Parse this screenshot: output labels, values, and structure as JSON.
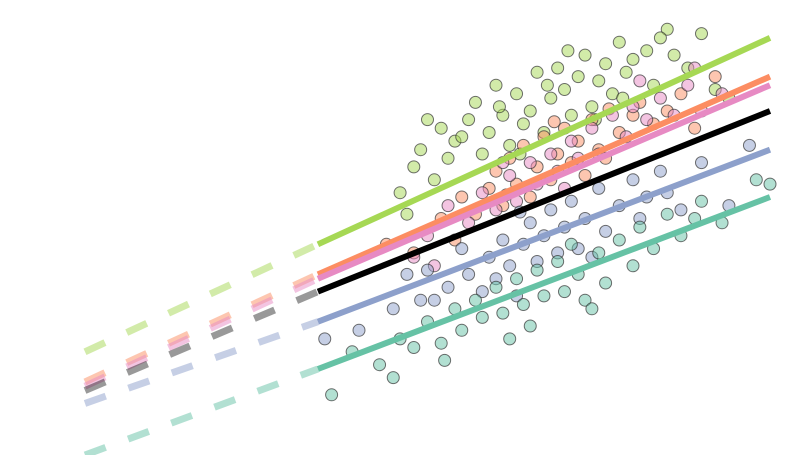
{
  "chart_data": {
    "type": "scatter",
    "title": "",
    "xlabel": "",
    "ylabel": "",
    "xlim": [
      0,
      10
    ],
    "ylim": [
      0,
      10
    ],
    "grid": false,
    "axes_visible": false,
    "legend": "none",
    "series": [
      {
        "color": "#a6d854",
        "points": [
          [
            4.6,
            6.1
          ],
          [
            4.8,
            6.7
          ],
          [
            4.9,
            7.1
          ],
          [
            5.1,
            6.4
          ],
          [
            5.2,
            7.6
          ],
          [
            5.3,
            6.9
          ],
          [
            5.4,
            7.3
          ],
          [
            5.6,
            7.8
          ],
          [
            5.7,
            8.2
          ],
          [
            5.8,
            7.0
          ],
          [
            5.9,
            7.5
          ],
          [
            6.0,
            8.6
          ],
          [
            6.1,
            7.9
          ],
          [
            6.2,
            7.2
          ],
          [
            6.3,
            8.4
          ],
          [
            6.4,
            7.7
          ],
          [
            6.5,
            8.0
          ],
          [
            6.6,
            8.9
          ],
          [
            6.7,
            7.5
          ],
          [
            6.8,
            8.3
          ],
          [
            6.9,
            9.0
          ],
          [
            7.0,
            8.5
          ],
          [
            7.1,
            7.9
          ],
          [
            7.2,
            8.8
          ],
          [
            7.3,
            9.3
          ],
          [
            7.4,
            8.1
          ],
          [
            7.5,
            8.7
          ],
          [
            7.6,
            9.1
          ],
          [
            7.7,
            8.4
          ],
          [
            7.8,
            9.6
          ],
          [
            7.9,
            8.9
          ],
          [
            8.0,
            9.2
          ],
          [
            8.2,
            9.4
          ],
          [
            8.3,
            8.6
          ],
          [
            8.5,
            9.9
          ],
          [
            8.6,
            9.3
          ],
          [
            8.8,
            9.0
          ],
          [
            9.0,
            9.8
          ],
          [
            9.2,
            8.5
          ],
          [
            9.4,
            8.3
          ],
          [
            5.5,
            7.4
          ],
          [
            6.05,
            8.1
          ],
          [
            6.35,
            7.0
          ],
          [
            7.05,
            9.4
          ],
          [
            7.45,
            7.8
          ],
          [
            4.7,
            5.6
          ],
          [
            5.0,
            7.8
          ],
          [
            6.75,
            8.6
          ],
          [
            7.85,
            8.3
          ],
          [
            8.4,
            9.7
          ]
        ],
        "line": {
          "x": [
            3.4,
            10.0
          ],
          "y": [
            4.9,
            9.7
          ]
        },
        "extrap": {
          "x": [
            0.0,
            3.4
          ],
          "y": [
            2.4,
            4.9
          ]
        }
      },
      {
        "color": "#fc8d62",
        "points": [
          [
            4.4,
            4.9
          ],
          [
            5.2,
            5.5
          ],
          [
            5.5,
            6.0
          ],
          [
            5.7,
            5.6
          ],
          [
            5.9,
            6.2
          ],
          [
            6.0,
            6.6
          ],
          [
            6.1,
            5.8
          ],
          [
            6.2,
            6.9
          ],
          [
            6.3,
            6.3
          ],
          [
            6.4,
            7.2
          ],
          [
            6.5,
            6.0
          ],
          [
            6.6,
            6.7
          ],
          [
            6.7,
            7.4
          ],
          [
            6.8,
            6.4
          ],
          [
            6.9,
            7.0
          ],
          [
            7.0,
            7.6
          ],
          [
            7.1,
            6.8
          ],
          [
            7.2,
            7.3
          ],
          [
            7.3,
            6.5
          ],
          [
            7.4,
            7.8
          ],
          [
            7.5,
            7.1
          ],
          [
            7.6,
            6.9
          ],
          [
            7.8,
            7.5
          ],
          [
            8.0,
            7.9
          ],
          [
            8.1,
            8.2
          ],
          [
            8.3,
            7.7
          ],
          [
            8.5,
            8.0
          ],
          [
            8.7,
            8.4
          ],
          [
            8.9,
            7.6
          ],
          [
            9.2,
            8.8
          ],
          [
            4.8,
            4.7
          ],
          [
            5.4,
            5.0
          ],
          [
            6.15,
            6.05
          ],
          [
            6.85,
            7.75
          ],
          [
            7.65,
            8.05
          ]
        ],
        "line": {
          "x": [
            3.4,
            10.0
          ],
          "y": [
            4.2,
            8.8
          ]
        },
        "extrap": {
          "x": [
            0.0,
            3.4
          ],
          "y": [
            1.7,
            4.2
          ]
        }
      },
      {
        "color": "#e78ac3",
        "points": [
          [
            4.8,
            4.6
          ],
          [
            5.0,
            5.1
          ],
          [
            5.3,
            5.8
          ],
          [
            5.6,
            5.4
          ],
          [
            5.8,
            6.1
          ],
          [
            6.0,
            5.7
          ],
          [
            6.2,
            6.5
          ],
          [
            6.3,
            5.9
          ],
          [
            6.5,
            6.8
          ],
          [
            6.6,
            6.3
          ],
          [
            6.8,
            7.0
          ],
          [
            6.9,
            6.6
          ],
          [
            7.1,
            7.3
          ],
          [
            7.2,
            6.9
          ],
          [
            7.4,
            7.6
          ],
          [
            7.5,
            7.0
          ],
          [
            7.7,
            7.9
          ],
          [
            7.9,
            7.4
          ],
          [
            8.0,
            8.1
          ],
          [
            8.2,
            7.8
          ],
          [
            8.4,
            8.3
          ],
          [
            8.6,
            7.9
          ],
          [
            8.8,
            8.6
          ],
          [
            9.0,
            8.0
          ],
          [
            9.3,
            8.4
          ],
          [
            5.1,
            4.4
          ],
          [
            6.1,
            6.8
          ],
          [
            7.0,
            6.2
          ],
          [
            8.1,
            8.7
          ],
          [
            8.9,
            9.0
          ]
        ],
        "line": {
          "x": [
            3.4,
            10.0
          ],
          "y": [
            4.1,
            8.6
          ]
        },
        "extrap": {
          "x": [
            0.0,
            3.4
          ],
          "y": [
            1.6,
            4.1
          ]
        }
      },
      {
        "color": "#8da0cb",
        "points": [
          [
            3.5,
            2.7
          ],
          [
            4.0,
            2.9
          ],
          [
            4.5,
            3.4
          ],
          [
            4.9,
            3.6
          ],
          [
            5.0,
            4.3
          ],
          [
            5.3,
            3.9
          ],
          [
            5.5,
            4.8
          ],
          [
            5.6,
            4.2
          ],
          [
            5.8,
            3.8
          ],
          [
            5.9,
            4.6
          ],
          [
            6.0,
            4.1
          ],
          [
            6.1,
            5.0
          ],
          [
            6.2,
            4.4
          ],
          [
            6.3,
            3.7
          ],
          [
            6.4,
            4.9
          ],
          [
            6.5,
            5.4
          ],
          [
            6.6,
            4.5
          ],
          [
            6.7,
            5.1
          ],
          [
            6.8,
            5.7
          ],
          [
            6.9,
            4.7
          ],
          [
            7.0,
            5.3
          ],
          [
            7.1,
            5.9
          ],
          [
            7.2,
            4.8
          ],
          [
            7.3,
            5.5
          ],
          [
            7.5,
            6.2
          ],
          [
            7.6,
            5.2
          ],
          [
            7.8,
            5.8
          ],
          [
            8.0,
            6.4
          ],
          [
            8.2,
            6.0
          ],
          [
            8.4,
            6.6
          ],
          [
            8.5,
            6.1
          ],
          [
            8.7,
            5.7
          ],
          [
            9.0,
            6.8
          ],
          [
            9.7,
            7.2
          ],
          [
            9.4,
            5.8
          ],
          [
            5.1,
            3.6
          ],
          [
            6.35,
            5.65
          ],
          [
            7.4,
            4.6
          ],
          [
            8.1,
            5.5
          ],
          [
            4.7,
            4.2
          ]
        ],
        "line": {
          "x": [
            3.4,
            10.0
          ],
          "y": [
            3.1,
            7.1
          ]
        },
        "extrap": {
          "x": [
            0.0,
            3.4
          ],
          "y": [
            1.2,
            3.1
          ]
        }
      },
      {
        "color": "#66c2a5",
        "points": [
          [
            3.6,
            1.4
          ],
          [
            3.9,
            2.4
          ],
          [
            4.3,
            2.1
          ],
          [
            4.6,
            2.7
          ],
          [
            4.8,
            2.5
          ],
          [
            5.0,
            3.1
          ],
          [
            5.2,
            2.6
          ],
          [
            5.4,
            3.4
          ],
          [
            5.5,
            2.9
          ],
          [
            5.7,
            3.6
          ],
          [
            5.8,
            3.2
          ],
          [
            6.0,
            3.9
          ],
          [
            6.1,
            3.3
          ],
          [
            6.3,
            4.1
          ],
          [
            6.4,
            3.5
          ],
          [
            6.5,
            3.0
          ],
          [
            6.6,
            4.3
          ],
          [
            6.7,
            3.7
          ],
          [
            6.9,
            4.5
          ],
          [
            7.0,
            3.8
          ],
          [
            7.1,
            4.9
          ],
          [
            7.2,
            4.2
          ],
          [
            7.3,
            3.6
          ],
          [
            7.5,
            4.7
          ],
          [
            7.6,
            4.0
          ],
          [
            7.8,
            5.0
          ],
          [
            8.0,
            4.4
          ],
          [
            8.1,
            5.3
          ],
          [
            8.3,
            4.8
          ],
          [
            8.5,
            5.6
          ],
          [
            8.7,
            5.1
          ],
          [
            9.0,
            5.9
          ],
          [
            9.3,
            5.4
          ],
          [
            9.8,
            6.4
          ],
          [
            10.0,
            6.3
          ],
          [
            4.5,
            1.8
          ],
          [
            5.25,
            2.2
          ],
          [
            6.2,
            2.7
          ],
          [
            7.4,
            3.4
          ],
          [
            8.9,
            5.5
          ]
        ],
        "line": {
          "x": [
            3.4,
            10.0
          ],
          "y": [
            2.0,
            6.0
          ]
        },
        "extrap": {
          "x": [
            0.0,
            3.4
          ],
          "y": [
            0.0,
            2.0
          ]
        }
      }
    ],
    "overall_fit": {
      "color": "#000000",
      "line": {
        "x": [
          3.4,
          10.0
        ],
        "y": [
          3.8,
          8.0
        ]
      },
      "extrap": {
        "x": [
          0.0,
          3.4
        ],
        "y": [
          1.5,
          3.8
        ]
      }
    }
  }
}
